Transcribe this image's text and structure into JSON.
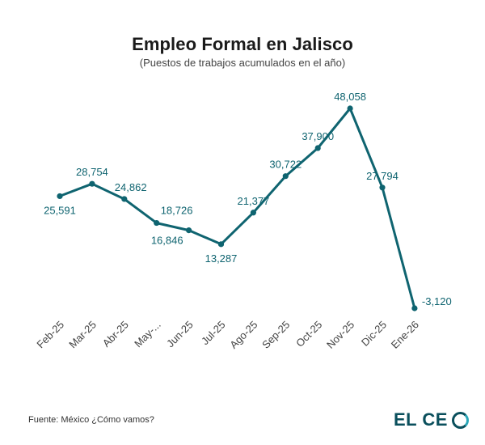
{
  "header": {
    "title": "Empleo Formal en Jalisco",
    "subtitle": "(Puestos de trabajos acumulados en el año)"
  },
  "footer": {
    "source": "Fuente: México ¿Cómo vamos?",
    "logo": {
      "text_before": "EL CE",
      "text_ring": "O"
    }
  },
  "colors": {
    "line": "#0f6470",
    "label": "#0f6470",
    "tick": "#444444"
  },
  "chart_data": {
    "type": "line",
    "title": "Empleo Formal en Jalisco",
    "subtitle": "(Puestos de trabajos acumulados en el año)",
    "xlabel": "",
    "ylabel": "",
    "grid": false,
    "ylim": [
      -3120,
      48058
    ],
    "categories": [
      "Feb-25",
      "Mar-25",
      "Abr-25",
      "May-...",
      "Jun-25",
      "Jul-25",
      "Ago-25",
      "Sep-25",
      "Oct-25",
      "Nov-25",
      "Dic-25",
      "Ene-26"
    ],
    "values": [
      25591,
      28754,
      24862,
      18726,
      16846,
      13287,
      21377,
      30722,
      37900,
      48058,
      27794,
      -3120
    ],
    "value_labels": [
      "25,591",
      "28,754",
      "24,862",
      "18,726",
      "16,846",
      "13,287",
      "21,377",
      "30,722",
      "37,900",
      "48,058",
      "27,794",
      "-3,120"
    ],
    "label_positions": [
      "below",
      "above",
      "right",
      "right",
      "left",
      "below",
      "above",
      "above",
      "above",
      "above",
      "above",
      "right"
    ]
  }
}
